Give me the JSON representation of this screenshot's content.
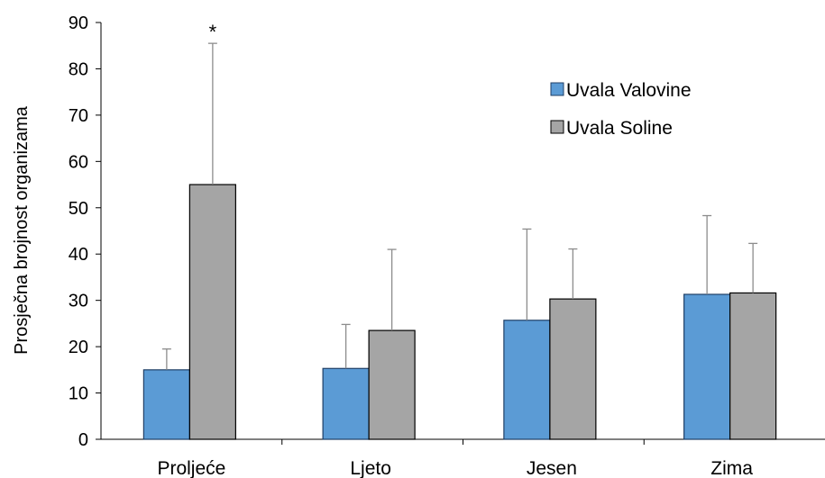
{
  "chart_data": {
    "type": "bar",
    "title": "",
    "xlabel": "",
    "ylabel": "Prosječna brojnost organizama",
    "ylim": [
      0,
      90
    ],
    "yticks": [
      0,
      10,
      20,
      30,
      40,
      50,
      60,
      70,
      80,
      90
    ],
    "yticks_text": [
      "0",
      "10",
      "20",
      "30",
      "40",
      "50",
      "60",
      "70",
      "80",
      "90"
    ],
    "grid": false,
    "legend_position": "top-right",
    "categories": [
      "Proljeće",
      "Ljeto",
      "Jesen",
      "Zima"
    ],
    "series": [
      {
        "name": "Uvala Valovine",
        "color": "#5B9BD5",
        "values": [
          15,
          15.3,
          25.7,
          31.3
        ],
        "error_upper": [
          4.5,
          9.5,
          19.7,
          17
        ]
      },
      {
        "name": "Uvala Soline",
        "color": "#A5A5A5",
        "values": [
          55,
          23.5,
          30.3,
          31.6
        ],
        "error_upper": [
          30.5,
          17.5,
          10.8,
          10.7
        ]
      }
    ],
    "annotations": [
      {
        "text": "*",
        "category_index": 0,
        "series_index": 1
      }
    ]
  }
}
